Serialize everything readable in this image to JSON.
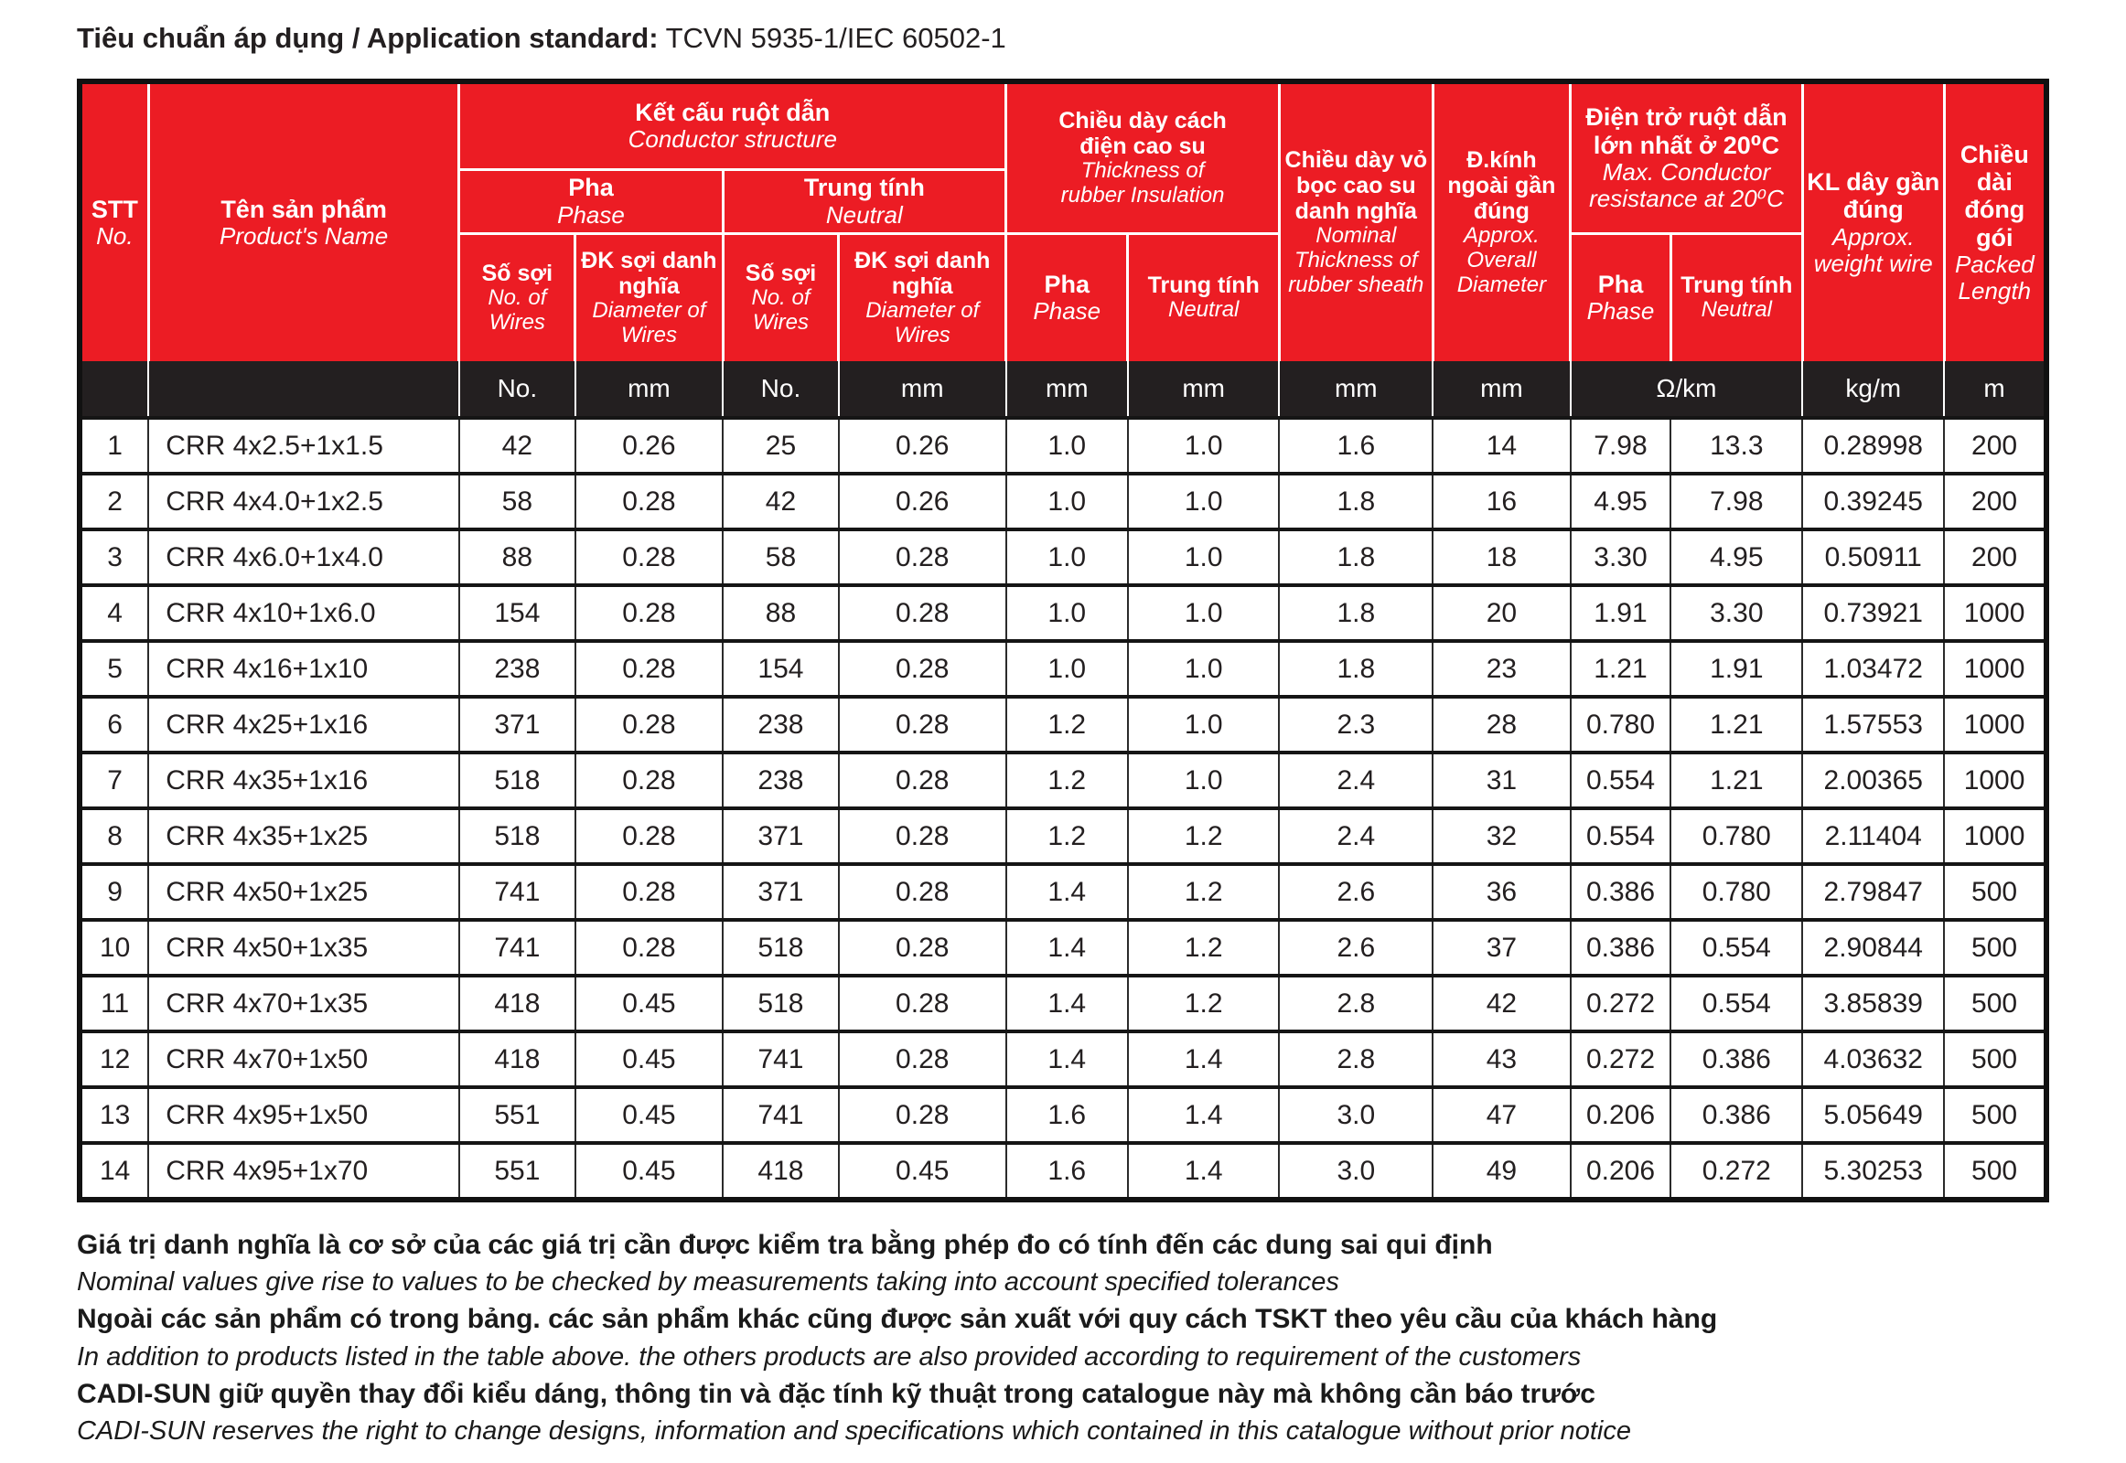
{
  "page": {
    "standard_label": "Tiêu chuẩn áp dụng / Application standard:",
    "standard_value": "TCVN 5935-1/IEC 60502-1"
  },
  "table": {
    "headers": {
      "stt": {
        "vn": "STT",
        "en": "No."
      },
      "product": {
        "vn": "Tên sản phẩm",
        "en": "Product's Name"
      },
      "conductor": {
        "vn": "Kết cấu ruột dẫn",
        "en": "Conductor structure"
      },
      "phase": {
        "vn": "Pha",
        "en": "Phase"
      },
      "neutral": {
        "vn": "Trung tính",
        "en": "Neutral"
      },
      "no_of_wires": {
        "vn": "Số sợi",
        "en": "No. of Wires"
      },
      "wire_diameter": {
        "vn": "ĐK sợi danh nghĩa",
        "en": "Diameter of Wires"
      },
      "insulation": {
        "vn": "Chiều dày cách điện cao su",
        "en": "Thickness of rubber Insulation"
      },
      "sheath": {
        "vn": "Chiều dày vỏ bọc cao su danh nghĩa",
        "en": "Nominal Thickness of rubber sheath"
      },
      "overall_diameter": {
        "vn": "Đ.kính ngoài gần đúng",
        "en": "Approx. Overall Diameter"
      },
      "resistance": {
        "vn": "Điện trở ruột dẫn lớn nhất ở 20⁰C",
        "en": "Max. Conductor resistance at 20⁰C"
      },
      "weight": {
        "vn": "KL dây gần đúng",
        "en": "Approx. weight wire"
      },
      "packed_length": {
        "vn": "Chiều dài đóng gói",
        "en": "Packed Length"
      }
    },
    "units": {
      "no1": "No.",
      "mm1": "mm",
      "no2": "No.",
      "mm2": "mm",
      "mm3": "mm",
      "mm4": "mm",
      "mm5": "mm",
      "mm6": "mm",
      "ohm": "Ω/km",
      "kg": "kg/m",
      "m": "m"
    },
    "rows": [
      [
        "1",
        "CRR 4x2.5+1x1.5",
        "42",
        "0.26",
        "25",
        "0.26",
        "1.0",
        "1.0",
        "1.6",
        "14",
        "7.98",
        "13.3",
        "0.28998",
        "200"
      ],
      [
        "2",
        "CRR 4x4.0+1x2.5",
        "58",
        "0.28",
        "42",
        "0.26",
        "1.0",
        "1.0",
        "1.8",
        "16",
        "4.95",
        "7.98",
        "0.39245",
        "200"
      ],
      [
        "3",
        "CRR 4x6.0+1x4.0",
        "88",
        "0.28",
        "58",
        "0.28",
        "1.0",
        "1.0",
        "1.8",
        "18",
        "3.30",
        "4.95",
        "0.50911",
        "200"
      ],
      [
        "4",
        "CRR 4x10+1x6.0",
        "154",
        "0.28",
        "88",
        "0.28",
        "1.0",
        "1.0",
        "1.8",
        "20",
        "1.91",
        "3.30",
        "0.73921",
        "1000"
      ],
      [
        "5",
        "CRR 4x16+1x10",
        "238",
        "0.28",
        "154",
        "0.28",
        "1.0",
        "1.0",
        "1.8",
        "23",
        "1.21",
        "1.91",
        "1.03472",
        "1000"
      ],
      [
        "6",
        "CRR 4x25+1x16",
        "371",
        "0.28",
        "238",
        "0.28",
        "1.2",
        "1.0",
        "2.3",
        "28",
        "0.780",
        "1.21",
        "1.57553",
        "1000"
      ],
      [
        "7",
        "CRR 4x35+1x16",
        "518",
        "0.28",
        "238",
        "0.28",
        "1.2",
        "1.0",
        "2.4",
        "31",
        "0.554",
        "1.21",
        "2.00365",
        "1000"
      ],
      [
        "8",
        "CRR 4x35+1x25",
        "518",
        "0.28",
        "371",
        "0.28",
        "1.2",
        "1.2",
        "2.4",
        "32",
        "0.554",
        "0.780",
        "2.11404",
        "1000"
      ],
      [
        "9",
        "CRR 4x50+1x25",
        "741",
        "0.28",
        "371",
        "0.28",
        "1.4",
        "1.2",
        "2.6",
        "36",
        "0.386",
        "0.780",
        "2.79847",
        "500"
      ],
      [
        "10",
        "CRR 4x50+1x35",
        "741",
        "0.28",
        "518",
        "0.28",
        "1.4",
        "1.2",
        "2.6",
        "37",
        "0.386",
        "0.554",
        "2.90844",
        "500"
      ],
      [
        "11",
        "CRR 4x70+1x35",
        "418",
        "0.45",
        "518",
        "0.28",
        "1.4",
        "1.2",
        "2.8",
        "42",
        "0.272",
        "0.554",
        "3.85839",
        "500"
      ],
      [
        "12",
        "CRR 4x70+1x50",
        "418",
        "0.45",
        "741",
        "0.28",
        "1.4",
        "1.4",
        "2.8",
        "43",
        "0.272",
        "0.386",
        "4.03632",
        "500"
      ],
      [
        "13",
        "CRR 4x95+1x50",
        "551",
        "0.45",
        "741",
        "0.28",
        "1.6",
        "1.4",
        "3.0",
        "47",
        "0.206",
        "0.386",
        "5.05649",
        "500"
      ],
      [
        "14",
        "CRR 4x95+1x70",
        "551",
        "0.45",
        "418",
        "0.45",
        "1.6",
        "1.4",
        "3.0",
        "49",
        "0.206",
        "0.272",
        "5.30253",
        "500"
      ]
    ]
  },
  "notes": [
    {
      "vn": "Giá trị danh nghĩa là cơ sở của các giá trị cần được kiểm tra bằng phép đo có tính đến các dung sai qui định",
      "en": "Nominal values give rise to values to be checked by measurements taking into account specified tolerances"
    },
    {
      "vn": "Ngoài các sản phẩm có trong bảng. các sản phẩm khác cũng được sản xuất với quy cách TSKT theo yêu cầu của khách hàng",
      "en": "In addition to products listed in the table above. the others products are also provided according to requirement of the customers"
    },
    {
      "vn": "CADI-SUN giữ quyền thay đổi kiểu dáng, thông tin và đặc tính kỹ thuật trong catalogue này mà không cần báo trước",
      "en": "CADI-SUN reserves the right to change designs, information and specifications which contained in this catalogue without prior notice"
    }
  ],
  "colors": {
    "header_red": "#ec1c24",
    "units_black": "#231f20",
    "text": "#231f20"
  }
}
